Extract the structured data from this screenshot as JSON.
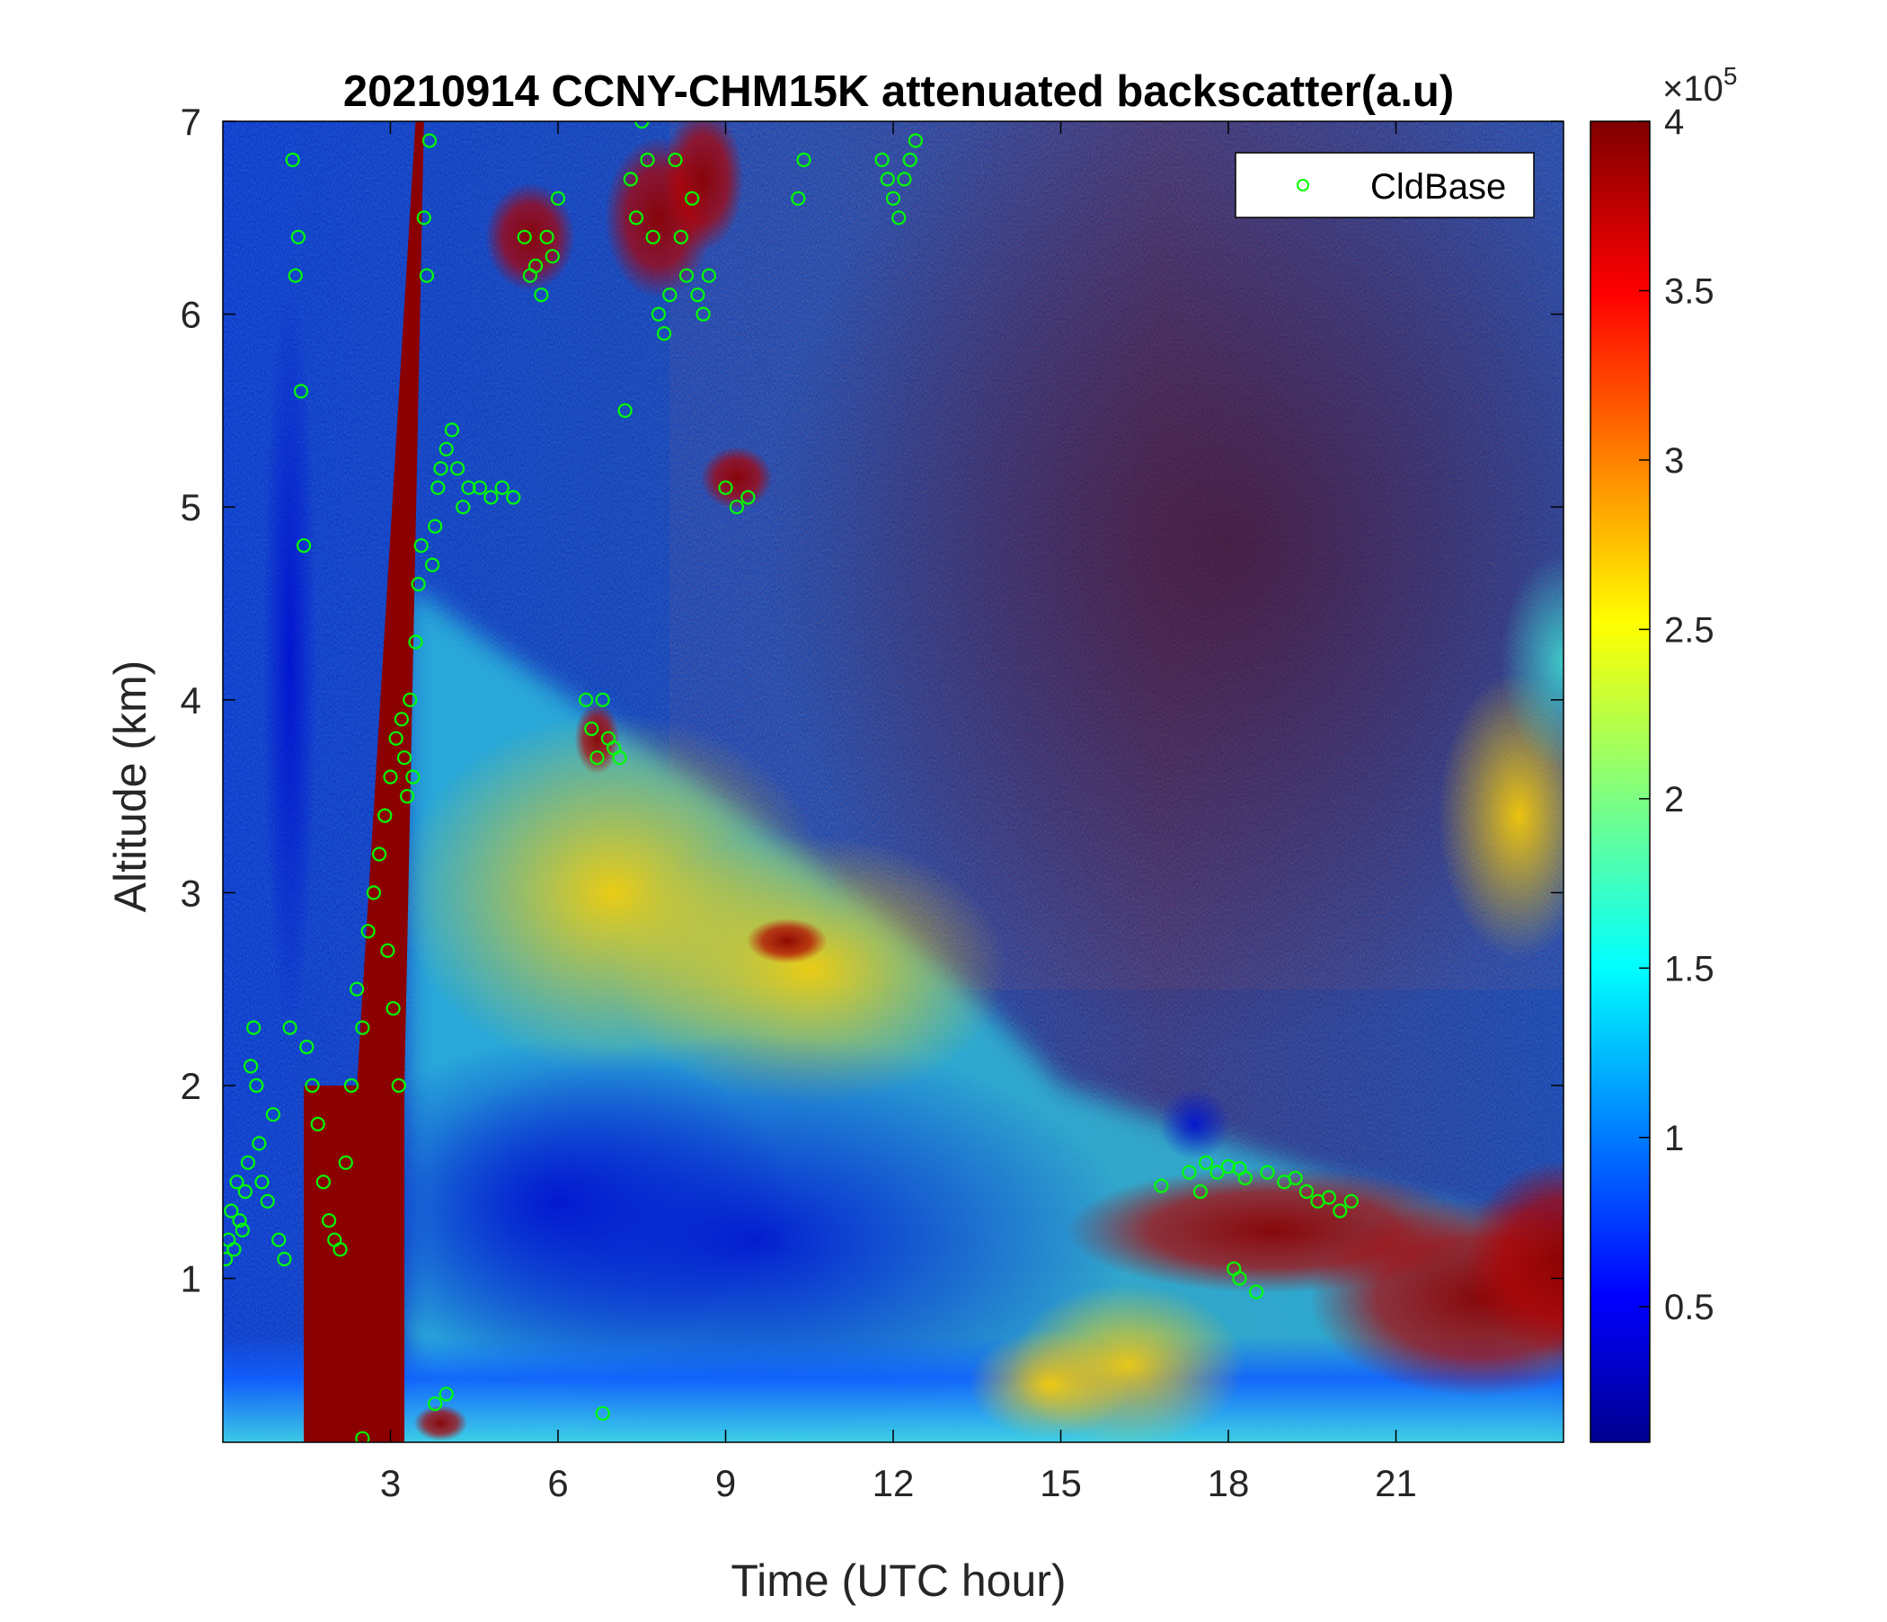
{
  "chart_data": {
    "type": "heatmap",
    "title": "20210914 CCNY-CHM15K attenuated backscatter(a.u)",
    "xlabel": "Time (UTC hour)",
    "ylabel": "Altitude (km)",
    "xlim": [
      0,
      24
    ],
    "ylim": [
      0.15,
      7
    ],
    "xticks": [
      3,
      6,
      9,
      12,
      15,
      18,
      21
    ],
    "yticks": [
      1,
      2,
      3,
      4,
      5,
      6,
      7
    ],
    "colorbar": {
      "colormap": "jet",
      "range": [
        0.1,
        4
      ],
      "ticks": [
        0.5,
        1,
        1.5,
        2,
        2.5,
        3,
        3.5,
        4
      ],
      "exponent_label": "×10",
      "exponent": "5"
    },
    "legend": {
      "position": "top-right",
      "entries": [
        "CldBase"
      ]
    },
    "series": [
      {
        "name": "CldBase",
        "marker": "circle",
        "color": "#00ff00",
        "points": [
          [
            0.05,
            1.1
          ],
          [
            0.1,
            1.2
          ],
          [
            0.15,
            1.35
          ],
          [
            0.2,
            1.15
          ],
          [
            0.25,
            1.5
          ],
          [
            0.3,
            1.3
          ],
          [
            0.35,
            1.25
          ],
          [
            0.4,
            1.45
          ],
          [
            0.45,
            1.6
          ],
          [
            0.5,
            2.1
          ],
          [
            0.55,
            2.3
          ],
          [
            0.6,
            2.0
          ],
          [
            0.65,
            1.7
          ],
          [
            0.7,
            1.5
          ],
          [
            0.8,
            1.4
          ],
          [
            0.9,
            1.85
          ],
          [
            1.0,
            1.2
          ],
          [
            1.1,
            1.1
          ],
          [
            1.2,
            2.3
          ],
          [
            1.25,
            6.8
          ],
          [
            1.3,
            6.2
          ],
          [
            1.35,
            6.4
          ],
          [
            1.4,
            5.6
          ],
          [
            1.45,
            4.8
          ],
          [
            1.5,
            2.2
          ],
          [
            1.6,
            2.0
          ],
          [
            1.7,
            1.8
          ],
          [
            1.8,
            1.5
          ],
          [
            1.9,
            1.3
          ],
          [
            2.0,
            1.2
          ],
          [
            2.1,
            1.15
          ],
          [
            2.2,
            1.6
          ],
          [
            2.3,
            2.0
          ],
          [
            2.4,
            2.5
          ],
          [
            2.5,
            2.3
          ],
          [
            2.6,
            2.8
          ],
          [
            2.7,
            3.0
          ],
          [
            2.8,
            3.2
          ],
          [
            2.9,
            3.4
          ],
          [
            2.95,
            2.7
          ],
          [
            3.0,
            3.6
          ],
          [
            3.05,
            2.4
          ],
          [
            3.1,
            3.8
          ],
          [
            3.15,
            2.0
          ],
          [
            3.2,
            3.9
          ],
          [
            3.25,
            3.7
          ],
          [
            3.3,
            3.5
          ],
          [
            3.35,
            4.0
          ],
          [
            3.4,
            3.6
          ],
          [
            3.45,
            4.3
          ],
          [
            3.5,
            4.6
          ],
          [
            3.55,
            4.8
          ],
          [
            3.6,
            6.5
          ],
          [
            3.65,
            6.2
          ],
          [
            3.7,
            6.9
          ],
          [
            3.75,
            4.7
          ],
          [
            3.8,
            4.9
          ],
          [
            3.85,
            5.1
          ],
          [
            3.9,
            5.2
          ],
          [
            4.0,
            5.3
          ],
          [
            4.1,
            5.4
          ],
          [
            4.2,
            5.2
          ],
          [
            4.3,
            5.0
          ],
          [
            4.4,
            5.1
          ],
          [
            4.6,
            5.1
          ],
          [
            4.8,
            5.05
          ],
          [
            5.0,
            5.1
          ],
          [
            5.2,
            5.05
          ],
          [
            5.4,
            6.4
          ],
          [
            5.5,
            6.2
          ],
          [
            5.6,
            6.25
          ],
          [
            5.7,
            6.1
          ],
          [
            5.8,
            6.4
          ],
          [
            5.9,
            6.3
          ],
          [
            6.0,
            6.6
          ],
          [
            6.5,
            4.0
          ],
          [
            6.6,
            3.85
          ],
          [
            6.7,
            3.7
          ],
          [
            6.8,
            4.0
          ],
          [
            6.9,
            3.8
          ],
          [
            7.0,
            3.75
          ],
          [
            7.1,
            3.7
          ],
          [
            7.2,
            5.5
          ],
          [
            7.3,
            6.7
          ],
          [
            7.4,
            6.5
          ],
          [
            7.5,
            7.0
          ],
          [
            7.6,
            6.8
          ],
          [
            7.7,
            6.4
          ],
          [
            7.8,
            6.0
          ],
          [
            7.9,
            5.9
          ],
          [
            8.0,
            6.1
          ],
          [
            8.1,
            6.8
          ],
          [
            8.2,
            6.4
          ],
          [
            8.3,
            6.2
          ],
          [
            8.4,
            6.6
          ],
          [
            8.5,
            6.1
          ],
          [
            8.6,
            6.0
          ],
          [
            8.7,
            6.2
          ],
          [
            9.0,
            5.1
          ],
          [
            9.2,
            5.0
          ],
          [
            9.4,
            5.05
          ],
          [
            10.3,
            6.6
          ],
          [
            10.4,
            6.8
          ],
          [
            11.8,
            6.8
          ],
          [
            11.9,
            6.7
          ],
          [
            12.0,
            6.6
          ],
          [
            12.1,
            6.5
          ],
          [
            12.2,
            6.7
          ],
          [
            12.3,
            6.8
          ],
          [
            12.4,
            6.9
          ],
          [
            16.8,
            1.48
          ],
          [
            17.3,
            1.55
          ],
          [
            17.5,
            1.45
          ],
          [
            17.6,
            1.6
          ],
          [
            17.8,
            1.55
          ],
          [
            18.0,
            1.58
          ],
          [
            18.2,
            1.57
          ],
          [
            18.3,
            1.52
          ],
          [
            18.1,
            1.05
          ],
          [
            18.2,
            1.0
          ],
          [
            18.5,
            0.93
          ],
          [
            18.7,
            1.55
          ],
          [
            19.0,
            1.5
          ],
          [
            19.2,
            1.52
          ],
          [
            19.4,
            1.45
          ],
          [
            19.6,
            1.4
          ],
          [
            19.8,
            1.42
          ],
          [
            20.0,
            1.35
          ],
          [
            20.2,
            1.4
          ],
          [
            2.5,
            0.17
          ],
          [
            3.8,
            0.35
          ],
          [
            4.0,
            0.4
          ],
          [
            6.8,
            0.3
          ]
        ]
      }
    ]
  }
}
